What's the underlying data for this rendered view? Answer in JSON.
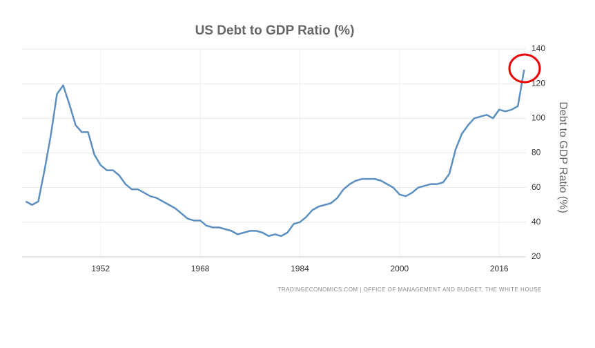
{
  "chart_data": {
    "type": "line",
    "title": "US Debt to GDP Ratio (%)",
    "y_label": "Debt to GDP Ratio (%)",
    "source": "TRADINGECONOMICS.COM | OFFICE OF MANAGEMENT AND BUDGET, THE WHITE HOUSE",
    "x": [
      1940,
      1941,
      1942,
      1943,
      1944,
      1945,
      1946,
      1947,
      1948,
      1949,
      1950,
      1951,
      1952,
      1953,
      1954,
      1955,
      1956,
      1957,
      1958,
      1959,
      1960,
      1961,
      1962,
      1963,
      1964,
      1965,
      1966,
      1967,
      1968,
      1969,
      1970,
      1971,
      1972,
      1973,
      1974,
      1975,
      1976,
      1977,
      1978,
      1979,
      1980,
      1981,
      1982,
      1983,
      1984,
      1985,
      1986,
      1987,
      1988,
      1989,
      1990,
      1991,
      1992,
      1993,
      1994,
      1995,
      1996,
      1997,
      1998,
      1999,
      2000,
      2001,
      2002,
      2003,
      2004,
      2005,
      2006,
      2007,
      2008,
      2009,
      2010,
      2011,
      2012,
      2013,
      2014,
      2015,
      2016,
      2017,
      2018,
      2019,
      2020
    ],
    "series": [
      {
        "name": "US Debt to GDP Ratio",
        "color": "#5b8fc0",
        "values": [
          52,
          50,
          52,
          70,
          90,
          114,
          119,
          108,
          96,
          92,
          92,
          79,
          73,
          70,
          70,
          67,
          62,
          59,
          59,
          57,
          55,
          54,
          52,
          50,
          48,
          45,
          42,
          41,
          41,
          38,
          37,
          37,
          36,
          35,
          33,
          34,
          35,
          35,
          34,
          32,
          33,
          32,
          34,
          39,
          40,
          43,
          47,
          49,
          50,
          51,
          54,
          59,
          62,
          64,
          65,
          65,
          65,
          64,
          62,
          60,
          56,
          55,
          57,
          60,
          61,
          62,
          62,
          63,
          68,
          82,
          91,
          96,
          100,
          101,
          102,
          100,
          105,
          104,
          105,
          107,
          128
        ]
      }
    ],
    "xlim": [
      1939.4,
      2020.3
    ],
    "xticks": [
      1952,
      1968,
      1984,
      2000,
      2016
    ],
    "ylim": [
      20,
      140
    ],
    "yticks": [
      20,
      40,
      60,
      80,
      100,
      120,
      140
    ],
    "grid": true
  }
}
